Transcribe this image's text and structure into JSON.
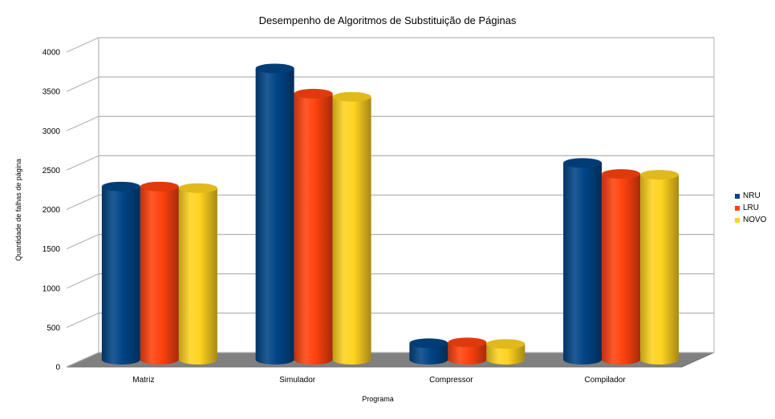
{
  "chart_data": {
    "type": "bar",
    "title": "Desempenho de Algoritmos de Substituição de Páginas",
    "xlabel": "Programa",
    "ylabel": "Quantidade de falhas de página",
    "categories": [
      "Matriz",
      "Simulador",
      "Compressor",
      "Compilador"
    ],
    "series": [
      {
        "name": "NRU",
        "values": [
          2200,
          3700,
          210,
          2500
        ],
        "color": "#004586"
      },
      {
        "name": "LRU",
        "values": [
          2200,
          3380,
          220,
          2360
        ],
        "color": "#ff420e"
      },
      {
        "name": "NOVO",
        "values": [
          2180,
          3340,
          200,
          2350
        ],
        "color": "#ffd320"
      }
    ],
    "ylim": [
      0,
      4000
    ],
    "yticks": [
      0,
      500,
      1000,
      1500,
      2000,
      2500,
      3000,
      3500,
      4000
    ],
    "grid": true,
    "legend_position": "right",
    "style": "3d-cylinder"
  }
}
